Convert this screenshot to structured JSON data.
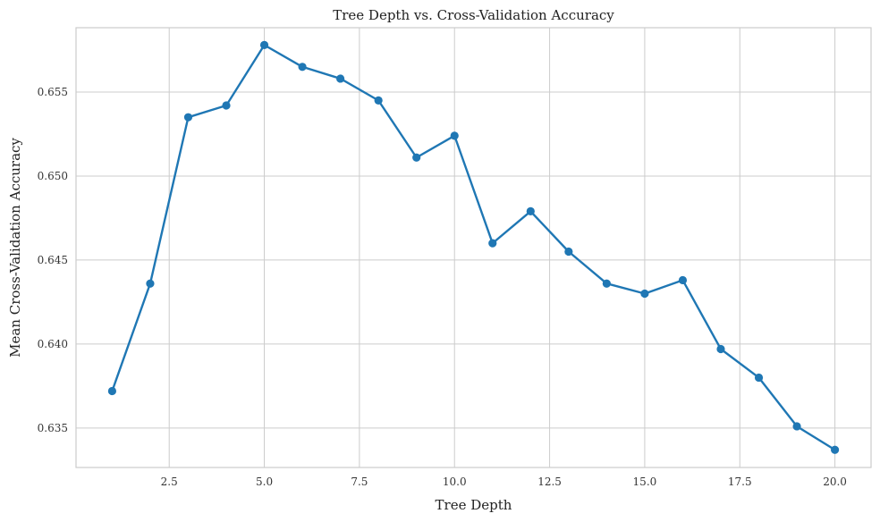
{
  "chart_data": {
    "type": "line",
    "title": "Tree Depth vs. Cross-Validation Accuracy",
    "xlabel": "Tree Depth",
    "ylabel": "Mean Cross-Validation Accuracy",
    "xlim": [
      0.05,
      20.95
    ],
    "ylim": [
      0.63265,
      0.65883
    ],
    "x_ticks": [
      2.5,
      5.0,
      7.5,
      10.0,
      12.5,
      15.0,
      17.5,
      20.0
    ],
    "x_tick_labels": [
      "2.5",
      "5.0",
      "7.5",
      "10.0",
      "12.5",
      "15.0",
      "17.5",
      "20.0"
    ],
    "y_ticks": [
      0.635,
      0.64,
      0.645,
      0.65,
      0.655
    ],
    "y_tick_labels": [
      "0.635",
      "0.640",
      "0.645",
      "0.650",
      "0.655"
    ],
    "grid": true,
    "legend": "none",
    "series": [
      {
        "color": "#1f77b4",
        "marker": "circle",
        "x": [
          1,
          2,
          3,
          4,
          5,
          6,
          7,
          8,
          9,
          10,
          11,
          12,
          13,
          14,
          15,
          16,
          17,
          18,
          19,
          20
        ],
        "y": [
          0.6372,
          0.6436,
          0.6535,
          0.6542,
          0.6578,
          0.6565,
          0.6558,
          0.6545,
          0.6511,
          0.6524,
          0.646,
          0.6479,
          0.6455,
          0.6436,
          0.643,
          0.6438,
          0.6397,
          0.638,
          0.6351,
          0.6337
        ]
      }
    ]
  }
}
